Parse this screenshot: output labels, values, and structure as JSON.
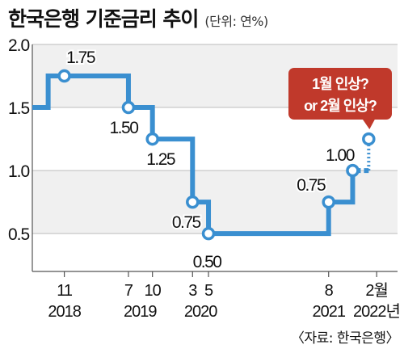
{
  "header": {
    "title": "한국은행 기준금리 추이",
    "unit": "(단위: 연%)"
  },
  "source": "〈자료: 한국은행〉",
  "callout": {
    "line1": "1월 인상?",
    "line2": "or 2월 인상?"
  },
  "colors": {
    "line": "#3a8fd0",
    "callout_bg": "#c0392b",
    "band": "#f0f0f0",
    "text": "#111111"
  },
  "chart_data": {
    "type": "line",
    "step": true,
    "title": "한국은행 기준금리 추이",
    "ylabel": "(단위: 연%)",
    "ylim": [
      0.2,
      2.0
    ],
    "yticks": [
      "0.5",
      "1.0",
      "1.5",
      "2.0"
    ],
    "x_month_ticks": [
      {
        "t": 2018.833,
        "label": "11"
      },
      {
        "t": 2019.5,
        "label": "7"
      },
      {
        "t": 2019.75,
        "label": "10"
      },
      {
        "t": 2020.167,
        "label": "3"
      },
      {
        "t": 2020.333,
        "label": "5"
      },
      {
        "t": 2021.583,
        "label": "8"
      },
      {
        "t": 2022.083,
        "label": "2월"
      }
    ],
    "x_year_labels": [
      {
        "t": 2018.833,
        "label": "2018"
      },
      {
        "t": 2019.62,
        "label": "2019"
      },
      {
        "t": 2020.25,
        "label": "2020"
      },
      {
        "t": 2021.583,
        "label": "2021"
      },
      {
        "t": 2022.083,
        "label": "2022년"
      }
    ],
    "series": [
      {
        "points": [
          {
            "t": 2018.833,
            "y": 1.75,
            "label": "1.75"
          },
          {
            "t": 2019.5,
            "y": 1.5,
            "label": "1.50"
          },
          {
            "t": 2019.75,
            "y": 1.25,
            "label": "1.25"
          },
          {
            "t": 2020.167,
            "y": 0.75,
            "label": "0.75"
          },
          {
            "t": 2020.333,
            "y": 0.5,
            "label": "0.50"
          },
          {
            "t": 2021.583,
            "y": 0.75,
            "label": "0.75"
          },
          {
            "t": 2021.833,
            "y": 1.0,
            "label": "1.00"
          },
          {
            "t": 2022.0,
            "y": 1.25,
            "label": "",
            "projected": true
          }
        ]
      }
    ]
  }
}
